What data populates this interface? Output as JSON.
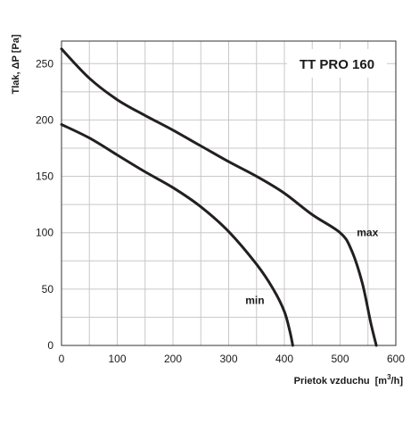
{
  "chart_data": {
    "type": "line",
    "title": "TT PRO 160",
    "xlabel": "Prietok vzduchu",
    "xlabel_unit_prefix": "[m",
    "xlabel_unit_sup": "3",
    "xlabel_unit_suffix": "/h]",
    "ylabel": "Tlak, ΔP [Pa]",
    "xlim": [
      0,
      600
    ],
    "ylim": [
      0,
      270
    ],
    "x_ticks": [
      0,
      100,
      200,
      300,
      400,
      500,
      600
    ],
    "y_ticks": [
      0,
      50,
      100,
      150,
      200,
      250
    ],
    "x_grid_step": 50,
    "y_grid_step": 25,
    "grid": true,
    "series": [
      {
        "name": "max",
        "color": "#231f20",
        "points": [
          [
            0,
            263
          ],
          [
            50,
            237
          ],
          [
            100,
            218
          ],
          [
            150,
            204
          ],
          [
            200,
            191
          ],
          [
            250,
            177
          ],
          [
            300,
            163
          ],
          [
            350,
            150
          ],
          [
            400,
            135
          ],
          [
            450,
            116
          ],
          [
            500,
            100
          ],
          [
            520,
            85
          ],
          [
            540,
            55
          ],
          [
            555,
            20
          ],
          [
            565,
            0
          ]
        ]
      },
      {
        "name": "min",
        "color": "#231f20",
        "points": [
          [
            0,
            196
          ],
          [
            50,
            184
          ],
          [
            100,
            169
          ],
          [
            150,
            154
          ],
          [
            200,
            140
          ],
          [
            250,
            123
          ],
          [
            300,
            101
          ],
          [
            350,
            72
          ],
          [
            380,
            50
          ],
          [
            400,
            30
          ],
          [
            410,
            12
          ],
          [
            415,
            0
          ]
        ]
      }
    ],
    "series_label_positions_data": [
      {
        "series": "max",
        "x": 530,
        "y": 97
      },
      {
        "series": "min",
        "x": 330,
        "y": 37
      }
    ]
  }
}
